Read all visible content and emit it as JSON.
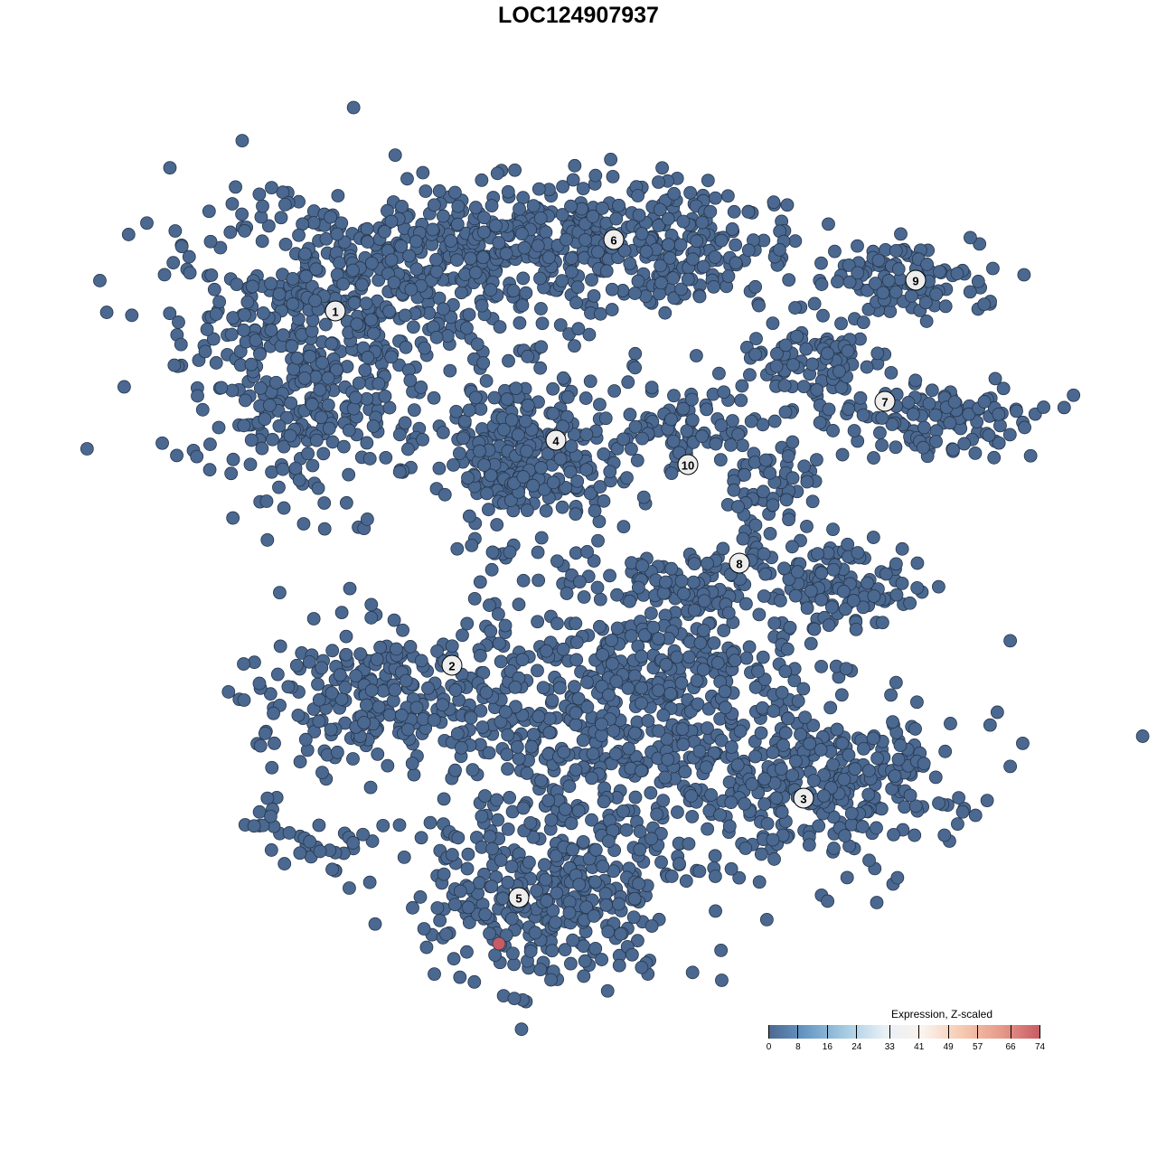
{
  "chart_data": {
    "type": "scatter",
    "title": "LOC124907937",
    "xlabel": "",
    "ylabel": "",
    "grid": false,
    "axes_visible": false,
    "cluster_labels": [
      "1",
      "2",
      "3",
      "4",
      "5",
      "6",
      "7",
      "8",
      "9",
      "10"
    ],
    "point_color_low": "#4a6890",
    "point_color_high": "#c85a64",
    "highlighted_points": [
      {
        "cluster": "5",
        "value": 74
      }
    ],
    "colorbar": {
      "title": "Expression, Z-scaled",
      "ticks": [
        "0",
        "8",
        "16",
        "24",
        "33",
        "41",
        "49",
        "57",
        "66",
        "74"
      ],
      "range": [
        0,
        74
      ],
      "colors": [
        "#4a6890",
        "#6a9ac6",
        "#a6cce2",
        "#e8f0f6",
        "#fbf2ec",
        "#f6c9b0",
        "#e69a8a",
        "#c85a64"
      ],
      "placement": "bottom-right"
    }
  }
}
